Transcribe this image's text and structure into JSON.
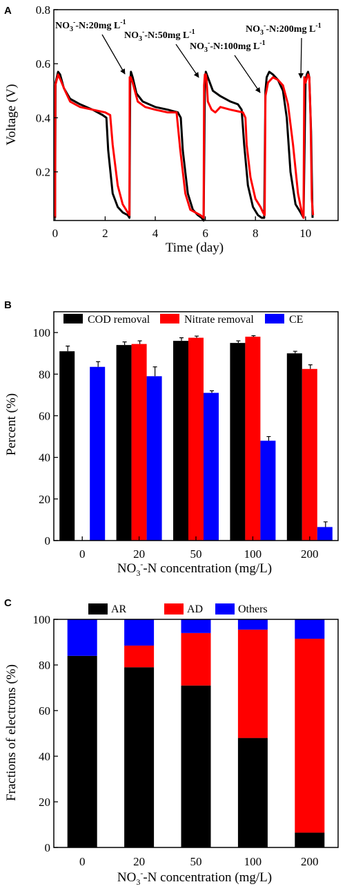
{
  "chart_data": [
    {
      "panel": "A",
      "type": "line",
      "xlabel": "Time (day)",
      "ylabel": "Voltage (V)",
      "xlim": [
        -0.05,
        11.3
      ],
      "ylim": [
        0.02,
        0.8
      ],
      "xticks": [
        "0",
        "2",
        "4",
        "6",
        "8",
        "10"
      ],
      "yticks": [
        "0.2",
        "0.4",
        "0.6",
        "0.8"
      ],
      "annotations": [
        {
          "label": "NO3-N:20mg L-1",
          "text_sub": "3",
          "text_sup": "-",
          "points_to": [
            3.0,
            0.49
          ]
        },
        {
          "label": "NO3-N:50mg L-1",
          "points_to": [
            5.95,
            0.5
          ]
        },
        {
          "label": "NO3-N:100mg L-1",
          "points_to": [
            8.35,
            0.48
          ]
        },
        {
          "label": "NO3-N:200mg L-1",
          "points_to": [
            9.95,
            0.55
          ]
        }
      ],
      "series": [
        {
          "color": "#000000",
          "x": [
            0,
            0.02,
            0.12,
            0.2,
            0.35,
            0.6,
            1.0,
            1.5,
            1.9,
            2.05,
            2.12,
            2.3,
            2.5,
            2.7,
            2.9,
            2.97,
            3.0,
            3.03,
            3.1,
            3.25,
            3.5,
            4.0,
            4.5,
            4.9,
            5.02,
            5.1,
            5.3,
            5.5,
            5.7,
            5.85,
            5.93,
            5.98,
            6.02,
            6.1,
            6.3,
            6.6,
            7.0,
            7.3,
            7.45,
            7.55,
            7.7,
            7.9,
            8.1,
            8.25,
            8.35,
            8.4,
            8.45,
            8.55,
            8.7,
            8.9,
            9.1,
            9.25,
            9.4,
            9.6,
            9.8,
            9.92,
            10.0,
            10.05,
            10.1,
            10.15,
            10.22,
            10.28
          ],
          "y": [
            0.03,
            0.53,
            0.57,
            0.56,
            0.51,
            0.47,
            0.45,
            0.43,
            0.41,
            0.4,
            0.28,
            0.12,
            0.07,
            0.05,
            0.04,
            0.03,
            0.53,
            0.57,
            0.55,
            0.49,
            0.46,
            0.44,
            0.43,
            0.42,
            0.4,
            0.28,
            0.12,
            0.06,
            0.04,
            0.03,
            0.02,
            0.52,
            0.57,
            0.55,
            0.5,
            0.48,
            0.46,
            0.45,
            0.43,
            0.3,
            0.15,
            0.07,
            0.04,
            0.03,
            0.03,
            0.5,
            0.55,
            0.57,
            0.56,
            0.54,
            0.5,
            0.4,
            0.2,
            0.08,
            0.05,
            0.03,
            0.54,
            0.56,
            0.57,
            0.55,
            0.35,
            0.03
          ]
        },
        {
          "color": "#ff0000",
          "x": [
            0,
            0.01,
            0.12,
            0.22,
            0.4,
            0.6,
            1.0,
            1.5,
            2.0,
            2.2,
            2.3,
            2.5,
            2.7,
            2.9,
            2.97,
            2.98,
            3.02,
            3.1,
            3.3,
            3.6,
            4.0,
            4.5,
            4.85,
            5.0,
            5.2,
            5.4,
            5.6,
            5.8,
            5.93,
            5.95,
            5.98,
            6.02,
            6.05,
            6.1,
            6.25,
            6.4,
            6.6,
            7.0,
            7.5,
            7.6,
            7.65,
            7.8,
            8.0,
            8.2,
            8.3,
            8.37,
            8.4,
            8.5,
            8.7,
            8.9,
            9.1,
            9.3,
            9.5,
            9.7,
            9.85,
            9.92,
            9.95,
            10.0,
            10.1,
            10.15,
            10.2,
            10.25,
            10.3
          ],
          "y": [
            0.03,
            0.52,
            0.56,
            0.54,
            0.5,
            0.46,
            0.44,
            0.43,
            0.42,
            0.41,
            0.3,
            0.15,
            0.08,
            0.05,
            0.04,
            0.55,
            0.55,
            0.53,
            0.46,
            0.44,
            0.43,
            0.42,
            0.42,
            0.28,
            0.12,
            0.06,
            0.05,
            0.04,
            0.03,
            0.52,
            0.56,
            0.56,
            0.54,
            0.46,
            0.43,
            0.42,
            0.44,
            0.43,
            0.42,
            0.4,
            0.3,
            0.18,
            0.1,
            0.07,
            0.05,
            0.04,
            0.48,
            0.53,
            0.55,
            0.54,
            0.52,
            0.45,
            0.3,
            0.12,
            0.05,
            0.03,
            0.55,
            0.53,
            0.56,
            0.55,
            0.4,
            0.1,
            0.04
          ]
        }
      ]
    },
    {
      "panel": "B",
      "type": "bar",
      "xlabel": "NO3-N concentration (mg/L)",
      "ylabel": "Percent (%)",
      "ylim": [
        0,
        110
      ],
      "yticks": [
        "0",
        "20",
        "40",
        "60",
        "80",
        "100"
      ],
      "categories": [
        "0",
        "20",
        "50",
        "100",
        "200"
      ],
      "legend_position": "top",
      "series": [
        {
          "name": "COD removal",
          "color": "#000000",
          "values": [
            91,
            94,
            96,
            95,
            90
          ],
          "errors": [
            2.5,
            1.5,
            1.5,
            1,
            1
          ]
        },
        {
          "name": "Nitrate removal",
          "color": "#ff0000",
          "values": [
            null,
            94.5,
            97.5,
            98,
            82.5
          ],
          "errors": [
            0,
            1.5,
            0.8,
            0.5,
            2
          ]
        },
        {
          "name": "CE",
          "color": "#0000ff",
          "values": [
            83.5,
            79,
            71,
            48,
            6.5
          ],
          "errors": [
            2.5,
            4.5,
            1,
            2,
            2.5
          ]
        }
      ]
    },
    {
      "panel": "C",
      "type": "bar",
      "stacked": true,
      "xlabel": "NO3-N concentration (mg/L)",
      "ylabel": "Fractions of electrons  (%)",
      "ylim": [
        0,
        100
      ],
      "yticks": [
        "0",
        "20",
        "40",
        "60",
        "80",
        "100"
      ],
      "categories": [
        "0",
        "20",
        "50",
        "100",
        "200"
      ],
      "legend_position": "top",
      "series": [
        {
          "name": "AR",
          "color": "#000000",
          "values": [
            84,
            79,
            71,
            48,
            6.5
          ]
        },
        {
          "name": "AD",
          "color": "#ff0000",
          "values": [
            0,
            9.5,
            23,
            47.5,
            85
          ]
        },
        {
          "name": "Others",
          "color": "#0000ff",
          "values": [
            16,
            11.5,
            6,
            4.5,
            8.5
          ]
        }
      ]
    }
  ]
}
